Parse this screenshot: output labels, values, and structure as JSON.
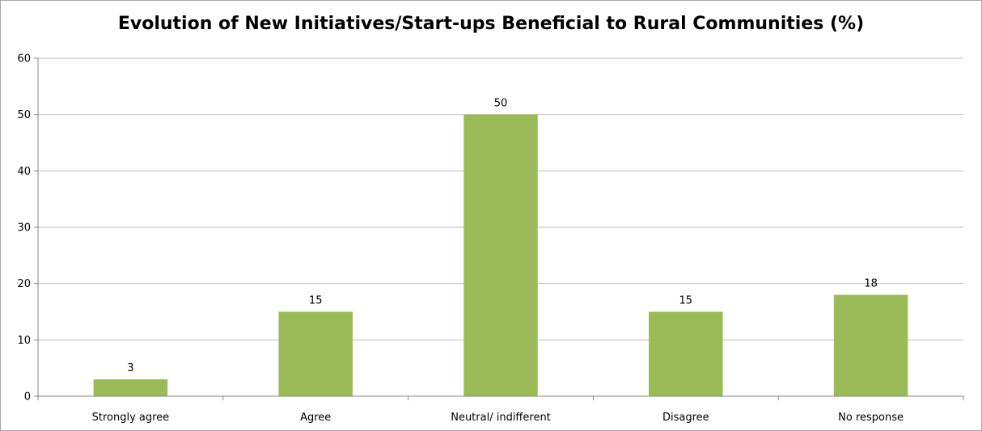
{
  "chart_data": {
    "type": "bar",
    "title": "Evolution of New Initiatives/Start-ups Beneficial to Rural Communities (%)",
    "xlabel": "",
    "ylabel": "",
    "categories": [
      "Strongly agree",
      "Agree",
      "Neutral/ indifferent",
      "Disagree",
      "No response"
    ],
    "values": [
      3,
      15,
      50,
      15,
      18
    ],
    "data_labels": [
      "3",
      "15",
      "50",
      "15",
      "18"
    ],
    "ylim": [
      0,
      60
    ],
    "yticks": [
      0,
      10,
      20,
      30,
      40,
      50,
      60
    ],
    "grid": true,
    "legend": "none",
    "bar_color": "#9bbb59",
    "grid_color": "#c0c0c0",
    "axis_color": "#868686"
  }
}
